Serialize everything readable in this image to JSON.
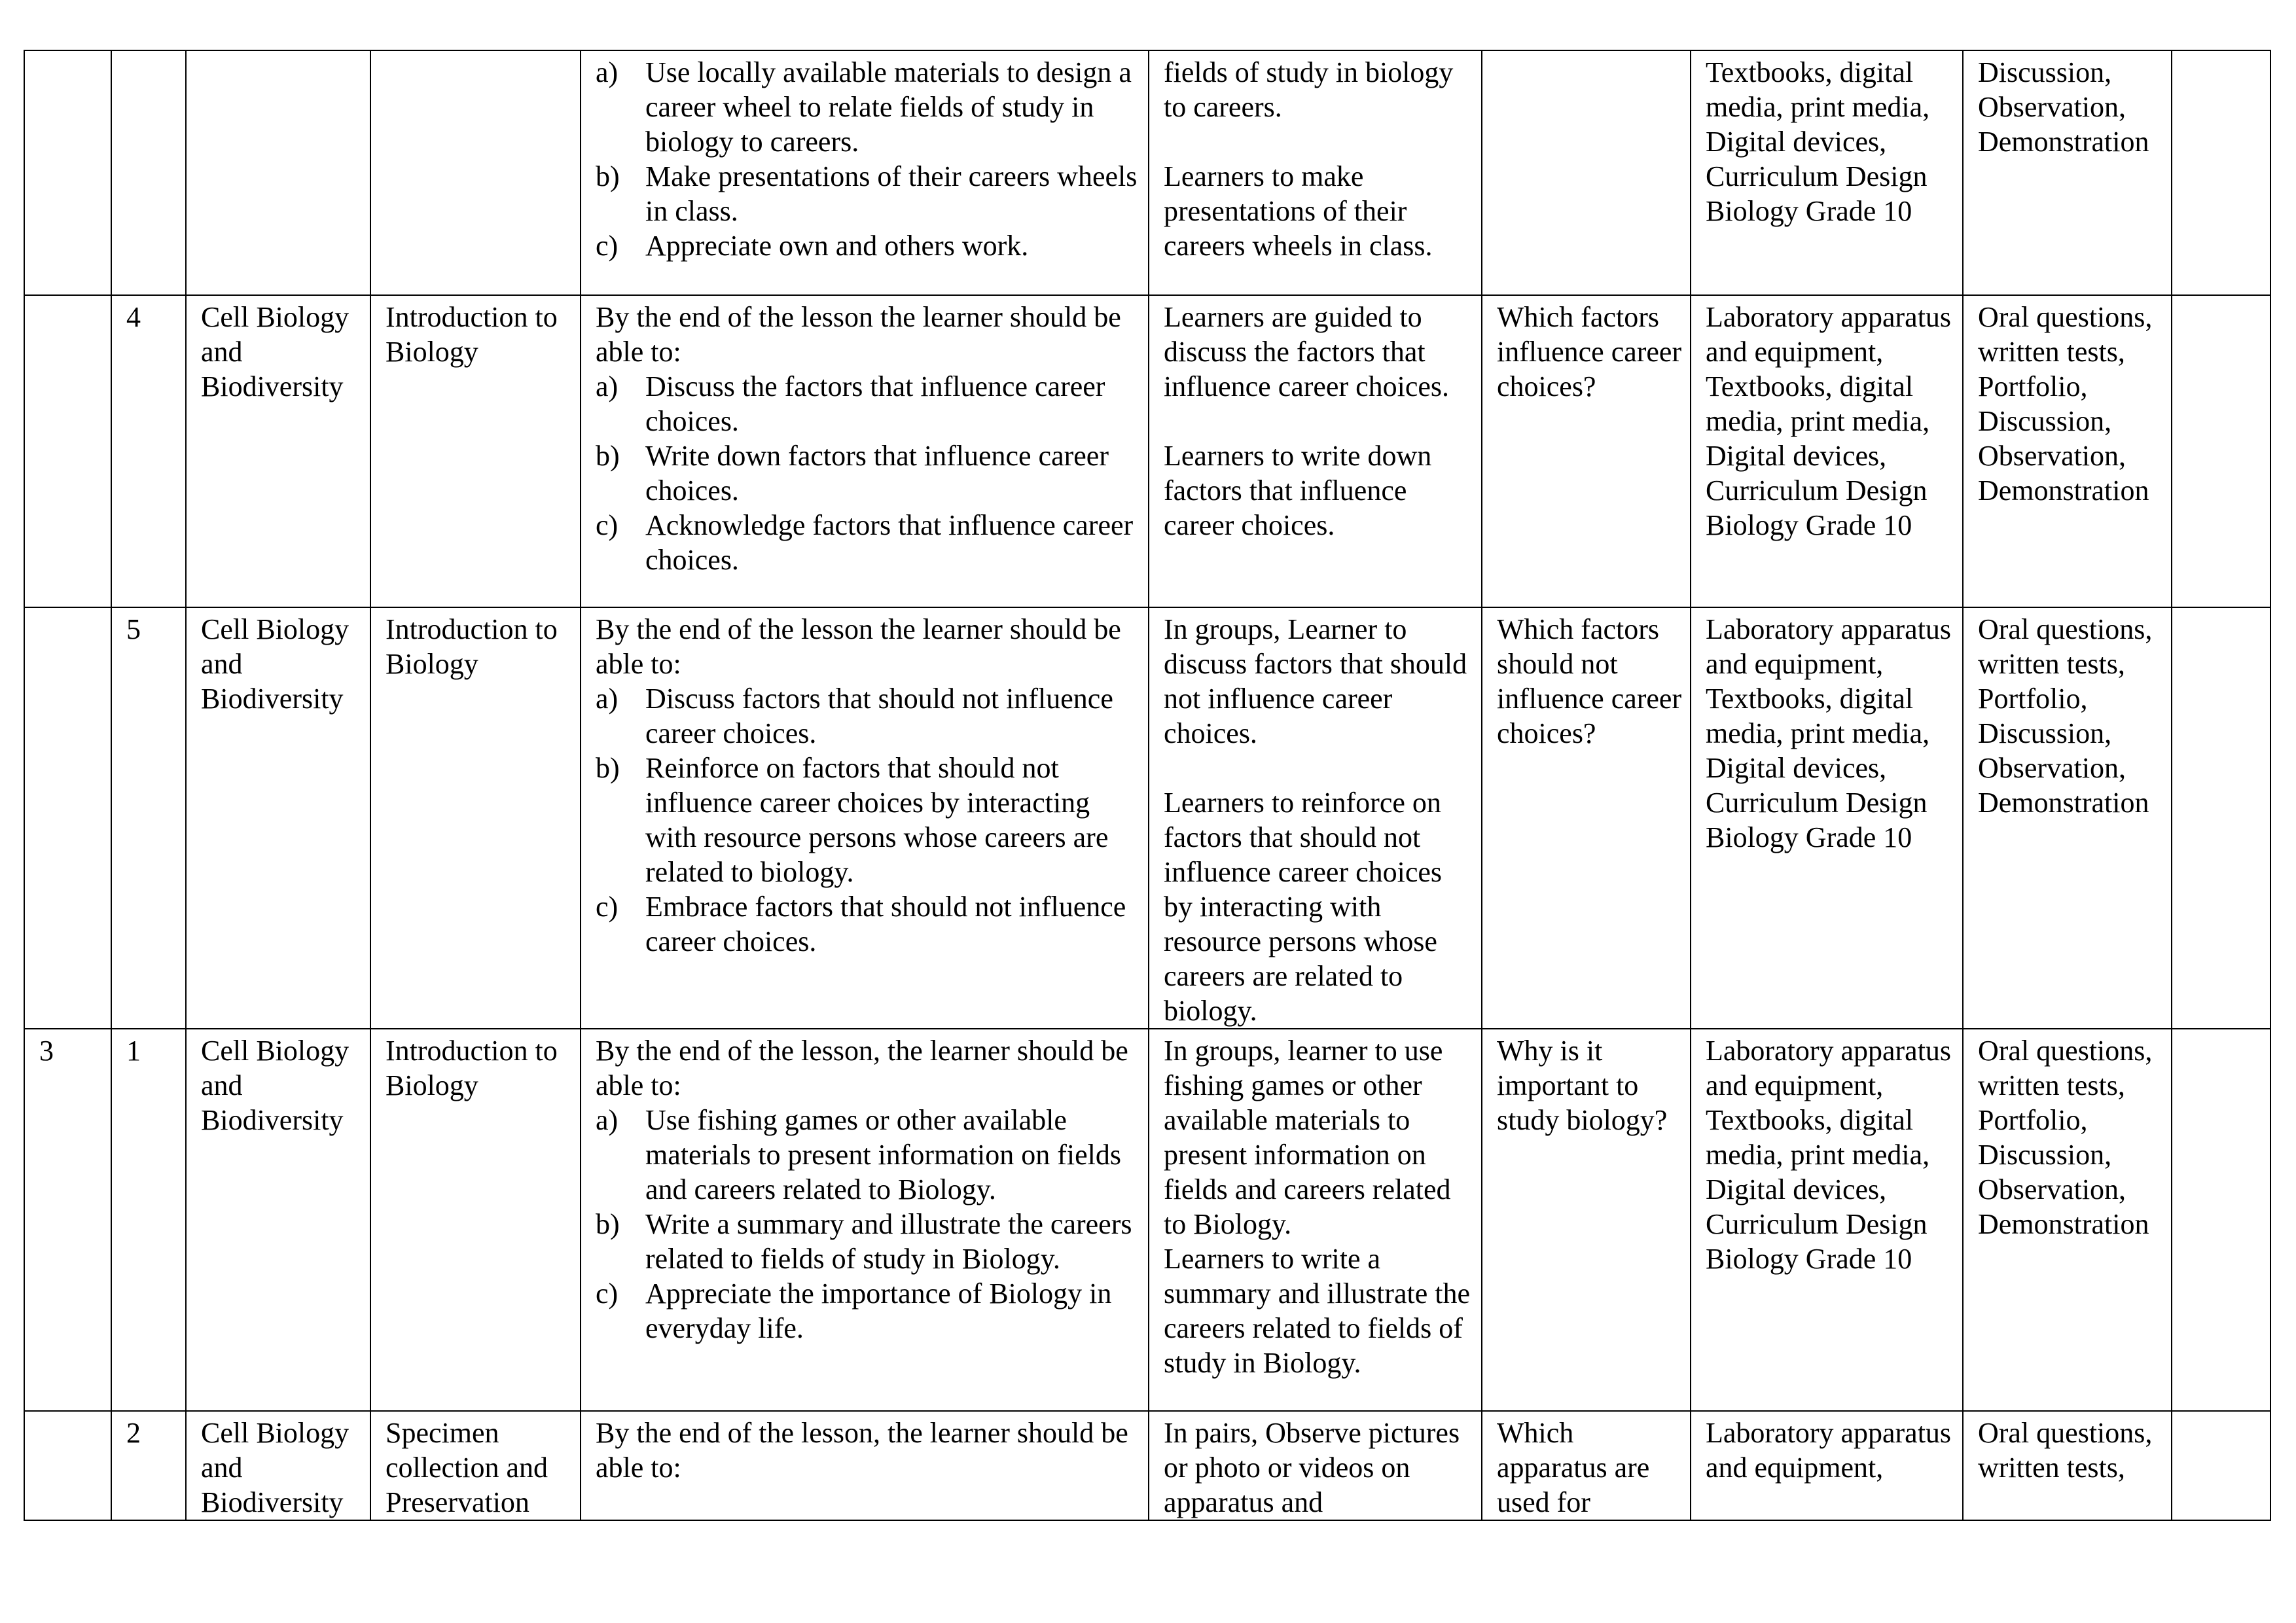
{
  "rows": [
    {
      "week": "",
      "lesson": "",
      "strand": "",
      "sub_strand": "",
      "objectives_intro": "",
      "objectives": [
        {
          "label": "a)",
          "text": "Use locally available materials to design a career wheel to relate fields of study in biology to careers."
        },
        {
          "label": "b)",
          "text": "Make presentations of their careers wheels in class."
        },
        {
          "label": "c)",
          "text": "Appreciate own and others work."
        }
      ],
      "experiences": [
        "fields of study in biology to careers.",
        "Learners to make presentations of their careers wheels in class."
      ],
      "inquiry": "",
      "resources": "Textbooks, digital media,  print media, Digital devices, Curriculum Design Biology Grade 10",
      "assessment": "Discussion, Observation, Demonstration",
      "remarks": ""
    },
    {
      "week": "",
      "lesson": "4",
      "strand": "Cell Biology and Biodiversity",
      "sub_strand": "Introduction to Biology",
      "objectives_intro": "By the end of the lesson the learner should be able to:",
      "objectives": [
        {
          "label": "a)",
          "text": "Discuss the factors that influence career choices."
        },
        {
          "label": "b)",
          "text": "Write down factors that influence career choices."
        },
        {
          "label": "c)",
          "text": "Acknowledge factors that influence career choices."
        }
      ],
      "experiences": [
        "Learners are guided to discuss the factors that influence career choices.",
        "Learners to write down factors that influence career choices."
      ],
      "inquiry": "Which factors influence career choices?",
      "resources": "Laboratory apparatus and equipment, Textbooks, digital media,  print media, Digital devices, Curriculum Design Biology Grade 10",
      "assessment": "Oral questions, written tests, Portfolio, Discussion, Observation, Demonstration",
      "remarks": ""
    },
    {
      "week": "",
      "lesson": "5",
      "strand": "Cell Biology and Biodiversity",
      "sub_strand": "Introduction to Biology",
      "objectives_intro": "By the end of the lesson the learner should be able to:",
      "objectives": [
        {
          "label": "a)",
          "text": "Discuss factors that should not influence career choices."
        },
        {
          "label": "b)",
          "text": "Reinforce on factors that should not influence career choices by interacting with resource persons whose careers are related to biology."
        },
        {
          "label": "c)",
          "text": "Embrace factors that should not influence career choices."
        }
      ],
      "experiences": [
        "In groups, Learner to discuss factors that should not influence career choices.",
        "Learners to reinforce on factors that should not influence career choices by interacting with resource persons whose careers are related to biology."
      ],
      "inquiry": "Which factors should not influence career choices?",
      "resources": "Laboratory apparatus and equipment, Textbooks, digital media,  print media, Digital devices, Curriculum Design Biology Grade 10",
      "assessment": "Oral questions, written tests, Portfolio, Discussion, Observation, Demonstration",
      "remarks": ""
    },
    {
      "week": "3",
      "lesson": "1",
      "strand": "Cell Biology and Biodiversity",
      "sub_strand": "Introduction to Biology",
      "objectives_intro": "By the end of the lesson, the learner should be able to:",
      "objectives": [
        {
          "label": "a)",
          "text": "Use fishing games or other available materials to present information on fields and careers related to Biology."
        },
        {
          "label": "b)",
          "text": "Write a summary and illustrate the careers related to fields of study in Biology."
        },
        {
          "label": "c)",
          "text": "Appreciate the importance of Biology in everyday life."
        }
      ],
      "experiences": [
        "In groups, learner to use fishing games or other available materials to present information on fields and careers related to Biology.\nLearners to write a summary and illustrate the careers related to fields of study in Biology."
      ],
      "inquiry": "Why is it important to study biology?",
      "resources": "Laboratory apparatus and equipment, Textbooks, digital media,  print media, Digital devices, Curriculum Design Biology Grade 10",
      "assessment": "Oral questions, written tests, Portfolio, Discussion, Observation, Demonstration",
      "remarks": ""
    },
    {
      "week": "",
      "lesson": "2",
      "strand": "Cell Biology and Biodiversity",
      "sub_strand": "Specimen collection and Preservation",
      "objectives_intro": "By the end of the lesson, the learner should be able to:",
      "objectives": [],
      "experiences": [
        "In pairs, Observe pictures or photo or videos on apparatus and"
      ],
      "inquiry": "Which apparatus are used for",
      "resources": "Laboratory apparatus and equipment,",
      "assessment": "Oral questions, written tests,",
      "remarks": ""
    }
  ]
}
